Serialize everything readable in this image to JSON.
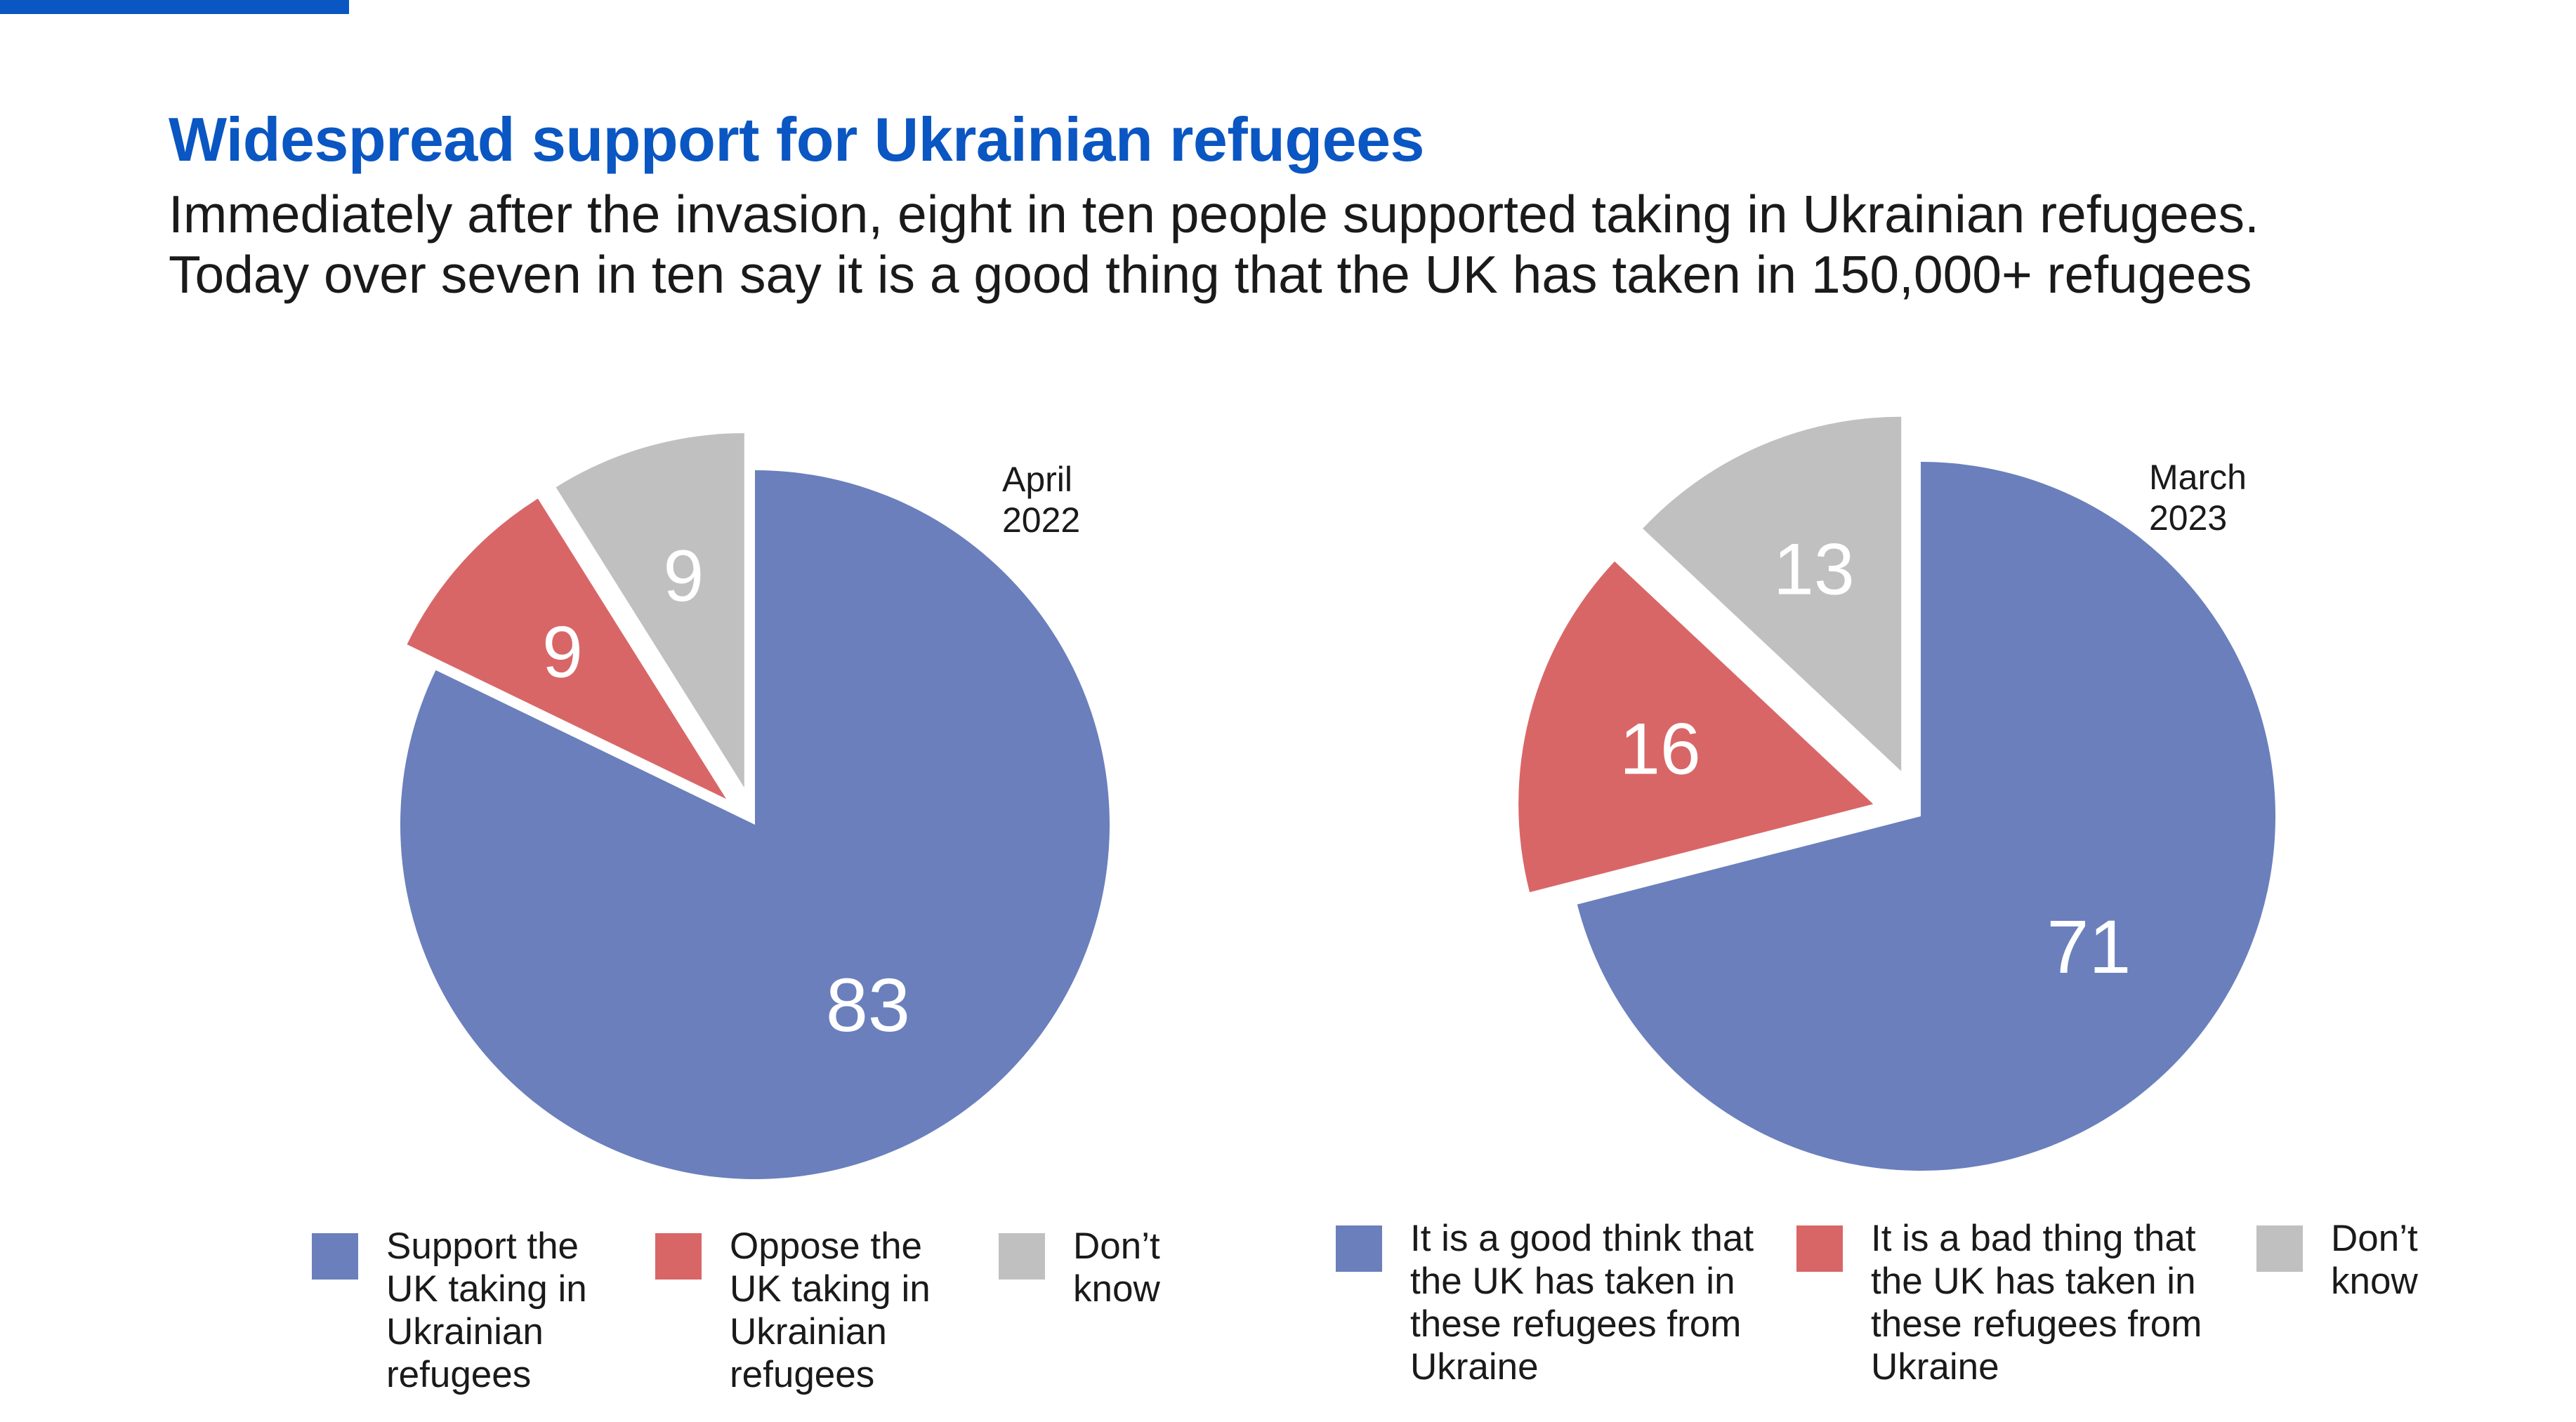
{
  "title": "Widespread support for Ukrainian refugees",
  "subtitle": {
    "line1": "Immediately after the invasion, eight in ten people supported taking in Ukrainian refugees.",
    "line2": "Today over seven in ten say it is a good thing that the UK has taken in 150,000+ refugees"
  },
  "colors": {
    "accent": "#0a56c2",
    "blue": "#6a7fbc",
    "red": "#d96667",
    "grey": "#c0c0c0"
  },
  "chart_data": [
    {
      "type": "pie",
      "period_label": [
        "April",
        "2022"
      ],
      "slices": [
        {
          "name": "Support the UK taking in Ukrainian refugees",
          "value": 83,
          "label": "83",
          "color": "#6a7fbc"
        },
        {
          "name": "Oppose the UK taking in Ukrainian refugees",
          "value": 9,
          "label": "9",
          "color": "#d96667"
        },
        {
          "name": "Don’t know",
          "value": 9,
          "label": "9",
          "color": "#c0c0c0"
        }
      ],
      "legend": [
        {
          "label": "Support the\nUK taking in\nUkrainian\nrefugees",
          "color": "#6a7fbc"
        },
        {
          "label": "Oppose the\nUK taking in\nUkrainian\nrefugees",
          "color": "#d96667"
        },
        {
          "label": "Don’t\nknow",
          "color": "#c0c0c0"
        }
      ]
    },
    {
      "type": "pie",
      "period_label": [
        "March",
        "2023"
      ],
      "slices": [
        {
          "name": "It is a good think that the UK has taken in these refugees from Ukraine",
          "value": 71,
          "label": "71",
          "color": "#6a7fbc"
        },
        {
          "name": "It is a bad thing that the UK has taken in these refugees from Ukraine",
          "value": 16,
          "label": "16",
          "color": "#d96667"
        },
        {
          "name": "Don’t know",
          "value": 13,
          "label": "13",
          "color": "#c0c0c0"
        }
      ],
      "legend": [
        {
          "label": "It is a good think that\nthe UK has taken in\nthese refugees from\nUkraine",
          "color": "#6a7fbc"
        },
        {
          "label": "It is a bad thing that\nthe UK has taken in\nthese refugees from\nUkraine",
          "color": "#d96667"
        },
        {
          "label": "Don’t\nknow",
          "color": "#c0c0c0"
        }
      ]
    }
  ]
}
